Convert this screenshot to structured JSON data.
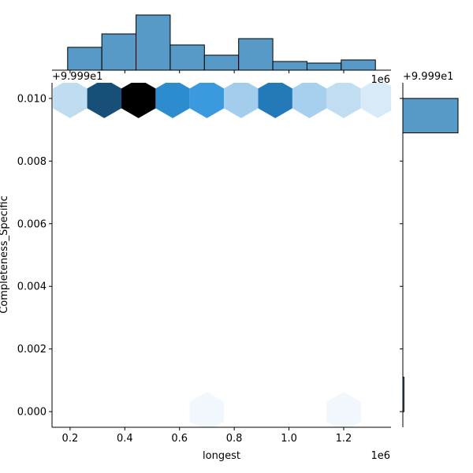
{
  "chart_data": {
    "type": "hexbin-jointplot",
    "xlabel": "longest",
    "ylabel": "Completeness_Specific",
    "x_offset_label": "1e6",
    "y_offset_label": "+9.999e1",
    "top_offset_label": "1e6",
    "top_y_offset_label": "+9.999e1",
    "right_offset_label": "+9.999e1",
    "xlim": [
      0.134,
      1.373
    ],
    "ylim": [
      -0.0005,
      0.0105
    ],
    "xticks": [
      "0.2",
      "0.4",
      "0.6",
      "0.8",
      "1.0",
      "1.2"
    ],
    "xtick_values": [
      0.2,
      0.4,
      0.6,
      0.8,
      1.0,
      1.2
    ],
    "yticks": [
      "0.000",
      "0.002",
      "0.004",
      "0.006",
      "0.008",
      "0.010"
    ],
    "ytick_values": [
      0.0,
      0.002,
      0.004,
      0.006,
      0.008,
      0.01
    ],
    "hexbins": [
      {
        "x": 0.2,
        "y": 0.01,
        "color": "#bfdcf0"
      },
      {
        "x": 0.325,
        "y": 0.01,
        "color": "#174f79"
      },
      {
        "x": 0.45,
        "y": 0.01,
        "color": "#000000"
      },
      {
        "x": 0.575,
        "y": 0.01,
        "color": "#2c8ccd"
      },
      {
        "x": 0.7,
        "y": 0.01,
        "color": "#3a9add"
      },
      {
        "x": 0.825,
        "y": 0.01,
        "color": "#a3cded"
      },
      {
        "x": 0.95,
        "y": 0.01,
        "color": "#2479b9"
      },
      {
        "x": 1.075,
        "y": 0.01,
        "color": "#a6d0ee"
      },
      {
        "x": 1.2,
        "y": 0.01,
        "color": "#c0ddf2"
      },
      {
        "x": 1.325,
        "y": 0.01,
        "color": "#d8e9f7"
      },
      {
        "x": 0.7,
        "y": 0.0,
        "color": "#f2f7fd"
      },
      {
        "x": 1.2,
        "y": 0.0,
        "color": "#f2f7fd"
      }
    ],
    "top_histogram": {
      "bin_edges": [
        0.191,
        0.316,
        0.441,
        0.566,
        0.691,
        0.816,
        0.941,
        1.066,
        1.191,
        1.316
      ],
      "counts": [
        29,
        46,
        70,
        32,
        19,
        40,
        11,
        9,
        13
      ],
      "color": "#5799c7"
    },
    "right_histogram": {
      "bins": [
        {
          "y_low": 0.0089,
          "y_high": 0.01,
          "count": 100
        },
        {
          "y_low": 0.0,
          "y_high": 0.0011,
          "count": 2
        }
      ],
      "color": "#5799c7"
    }
  }
}
